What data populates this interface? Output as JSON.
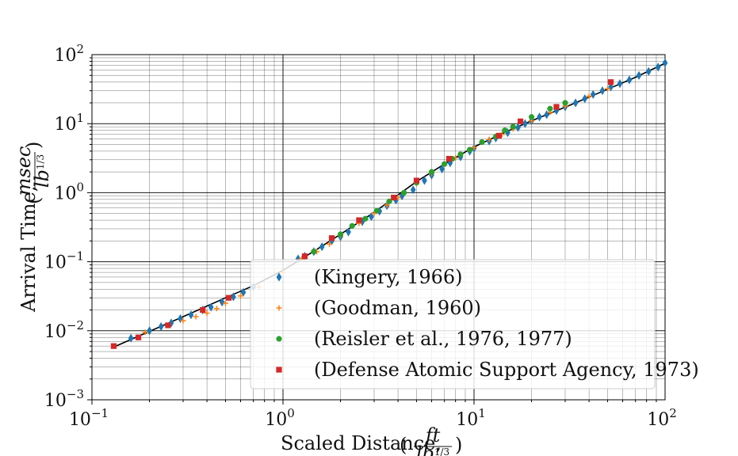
{
  "chart_data": {
    "type": "scatter",
    "xscale": "log",
    "yscale": "log",
    "xlim": [
      0.1,
      100
    ],
    "ylim": [
      0.001,
      100
    ],
    "grid": true,
    "legend_position": "lower-right",
    "xlabel": "Scaled Distance,",
    "xlabel_unit": {
      "num": "ft",
      "den_base": "lb",
      "den_exp": "1/3"
    },
    "ylabel": "Arrival Time,",
    "ylabel_unit": {
      "num": "msec",
      "den_base": "lb",
      "den_exp": "1/3"
    },
    "x_ticks": [
      {
        "value": 0.1,
        "base": "10",
        "exp": "−1"
      },
      {
        "value": 1,
        "base": "10",
        "exp": "0"
      },
      {
        "value": 10,
        "base": "10",
        "exp": "1"
      },
      {
        "value": 100,
        "base": "10",
        "exp": "2"
      }
    ],
    "y_ticks": [
      {
        "value": 0.001,
        "base": "10",
        "exp": "−3"
      },
      {
        "value": 0.01,
        "base": "10",
        "exp": "−2"
      },
      {
        "value": 0.1,
        "base": "10",
        "exp": "−1"
      },
      {
        "value": 1,
        "base": "10",
        "exp": "0"
      },
      {
        "value": 10,
        "base": "10",
        "exp": "1"
      },
      {
        "value": 100,
        "base": "10",
        "exp": "2"
      }
    ],
    "fit_curve": {
      "color": "#000000",
      "x": [
        0.13,
        0.2,
        0.3,
        0.5,
        0.7,
        1,
        1.5,
        2,
        3,
        5,
        7,
        10,
        15,
        20,
        30,
        50,
        70,
        100
      ],
      "y": [
        0.0058,
        0.0098,
        0.016,
        0.03,
        0.045,
        0.075,
        0.15,
        0.25,
        0.52,
        1.45,
        2.6,
        4.6,
        7.8,
        11.0,
        17.3,
        31.5,
        47.0,
        75.0
      ]
    },
    "series": [
      {
        "name": "(Kingery, 1966)",
        "marker": "thin-diamond",
        "color": "#1f77b4",
        "x": [
          0.16,
          0.2,
          0.23,
          0.26,
          0.29,
          0.33,
          0.38,
          0.42,
          0.48,
          0.55,
          0.62,
          0.7,
          1.2,
          1.3,
          1.45,
          1.6,
          1.8,
          2.0,
          2.2,
          2.6,
          2.9,
          3.2,
          3.5,
          3.9,
          4.2,
          4.8,
          5.5,
          6.0,
          6.8,
          7.5,
          8.5,
          9.5,
          10.0,
          12.0,
          13.0,
          15.0,
          17.0,
          18.5,
          20.0,
          22.0,
          24.0,
          27.0,
          30.0,
          34.0,
          38.0,
          42.0,
          47.0,
          52.0,
          58.0,
          65.0,
          73.0,
          82.0,
          92.0,
          100.0
        ],
        "y": [
          0.0078,
          0.01,
          0.0115,
          0.013,
          0.015,
          0.017,
          0.02,
          0.022,
          0.026,
          0.031,
          0.036,
          0.043,
          0.11,
          0.12,
          0.14,
          0.165,
          0.2,
          0.23,
          0.27,
          0.38,
          0.45,
          0.54,
          0.65,
          0.78,
          0.9,
          1.1,
          1.5,
          1.8,
          2.2,
          2.7,
          3.3,
          4.0,
          4.4,
          5.6,
          6.2,
          7.4,
          8.8,
          10.0,
          11.0,
          12.5,
          13.5,
          15.5,
          17.5,
          20.0,
          23.0,
          26.5,
          30.0,
          34.0,
          38.0,
          43.0,
          50.0,
          57.0,
          66.0,
          76.0
        ]
      },
      {
        "name": "(Goodman, 1960)",
        "marker": "plus",
        "color": "#ff7f0e",
        "x": [
          0.19,
          0.25,
          0.3,
          0.35,
          0.4,
          0.45,
          0.5,
          0.6,
          0.75,
          1.0,
          1.25,
          1.5,
          1.75,
          2.0,
          2.5,
          3.0,
          3.5,
          4.0,
          5.0,
          6.0,
          7.0,
          8.0,
          10.0,
          12.0,
          14.0,
          16.0,
          20.0,
          25.0,
          30.0,
          40.0,
          50.0
        ],
        "y": [
          0.0095,
          0.012,
          0.014,
          0.016,
          0.018,
          0.021,
          0.025,
          0.032,
          0.043,
          0.07,
          0.11,
          0.14,
          0.18,
          0.24,
          0.36,
          0.5,
          0.66,
          0.85,
          1.35,
          1.9,
          2.6,
          3.2,
          4.5,
          5.9,
          7.0,
          8.4,
          11.0,
          14.6,
          18.0,
          25.0,
          32.0
        ]
      },
      {
        "name": "(Reisler et al., 1976, 1977)",
        "marker": "circle",
        "color": "#2ca02c",
        "x": [
          1.45,
          2.0,
          2.3,
          2.7,
          3.1,
          3.6,
          4.3,
          5.0,
          6.0,
          7.0,
          7.7,
          8.5,
          9.5,
          11.0,
          13.0,
          14.5,
          16.0,
          20.0,
          25.0,
          30.0
        ],
        "y": [
          0.14,
          0.25,
          0.33,
          0.42,
          0.55,
          0.75,
          1.0,
          1.4,
          2.0,
          2.6,
          3.1,
          3.6,
          4.2,
          5.4,
          6.5,
          8.0,
          9.0,
          12.5,
          16.5,
          20.0
        ]
      },
      {
        "name": "(Defense Atomic Support Agency, 1973)",
        "marker": "square",
        "color": "#d62728",
        "x": [
          0.13,
          0.175,
          0.25,
          0.38,
          0.52,
          1.3,
          1.8,
          2.5,
          3.8,
          5.0,
          7.4,
          13.5,
          17.5,
          27.0,
          52.0
        ],
        "y": [
          0.006,
          0.008,
          0.012,
          0.02,
          0.03,
          0.12,
          0.22,
          0.4,
          0.85,
          1.5,
          3.1,
          6.7,
          10.8,
          17.5,
          40.0
        ]
      }
    ]
  }
}
